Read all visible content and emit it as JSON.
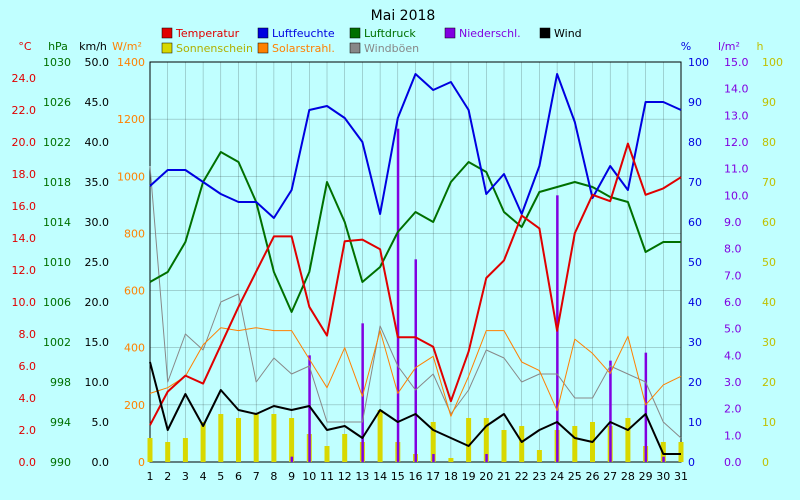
{
  "chart_data": {
    "type": "line",
    "title": "Mai 2018",
    "x": [
      1,
      2,
      3,
      4,
      5,
      6,
      7,
      8,
      9,
      10,
      11,
      12,
      13,
      14,
      15,
      16,
      17,
      18,
      19,
      20,
      21,
      22,
      23,
      24,
      25,
      26,
      27,
      28,
      29,
      30,
      31
    ],
    "series": [
      {
        "name": "Temperatur",
        "unit": "°C",
        "color": "#e00000",
        "values": [
          2.3,
          4.4,
          5.4,
          4.9,
          7.3,
          9.7,
          11.9,
          14.1,
          14.1,
          9.7,
          7.9,
          13.8,
          13.9,
          13.3,
          7.8,
          7.8,
          7.2,
          3.8,
          6.9,
          11.5,
          12.6,
          15.4,
          14.6,
          8.2,
          14.3,
          16.7,
          16.3,
          19.9,
          16.7,
          17.1,
          17.8
        ]
      },
      {
        "name": "Sonnenschein",
        "unit": "h",
        "color": "#d8d800",
        "values": [
          6,
          5,
          6,
          10,
          12,
          11,
          12,
          12,
          11,
          7,
          4,
          7,
          5,
          13,
          5,
          2,
          10,
          1,
          11,
          11,
          8,
          9,
          3,
          8,
          9,
          10,
          9,
          11,
          4,
          5,
          5
        ]
      },
      {
        "name": "Luftfeuchte",
        "unit": "%",
        "color": "#0000e0",
        "values": [
          69,
          73,
          73,
          70,
          67,
          65,
          65,
          61,
          68,
          88,
          89,
          86,
          80,
          62,
          86,
          97,
          93,
          95,
          88,
          67,
          72,
          62,
          74,
          97,
          85,
          66,
          74,
          68,
          90,
          90,
          88
        ]
      },
      {
        "name": "Solarstrahl.",
        "unit": "W/m²",
        "color": "#ff8000",
        "values": [
          240,
          260,
          300,
          410,
          470,
          460,
          470,
          460,
          460,
          360,
          260,
          400,
          230,
          460,
          240,
          330,
          370,
          160,
          300,
          460,
          460,
          350,
          320,
          180,
          430,
          380,
          310,
          440,
          200,
          270,
          300
        ]
      },
      {
        "name": "Luftdruck",
        "unit": "hPa",
        "color": "#007000",
        "values": [
          1008.0,
          1009.0,
          1012.0,
          1018.0,
          1021.0,
          1020.0,
          1016.0,
          1009.0,
          1005.0,
          1009.0,
          1018.0,
          1014.0,
          1008.0,
          1009.5,
          1013.0,
          1015.0,
          1014.0,
          1018.0,
          1020.0,
          1019.0,
          1015.0,
          1013.5,
          1017.0,
          1017.5,
          1018.0,
          1017.5,
          1016.5,
          1016.0,
          1011.0,
          1012.0,
          1012.0
        ]
      },
      {
        "name": "Windböen",
        "unit": "km/h",
        "color": "#888888",
        "values": [
          37,
          10,
          16,
          14,
          20,
          21,
          10,
          13,
          11,
          12,
          5,
          5,
          5,
          17,
          12,
          9,
          11,
          6,
          9,
          14,
          13,
          10,
          11,
          11,
          8,
          8,
          12,
          11,
          10,
          5,
          3
        ]
      },
      {
        "name": "Niederschl.",
        "unit": "l/m²",
        "color": "#8000e0",
        "values": [
          0,
          0,
          0,
          0,
          0,
          0,
          0,
          0,
          0.2,
          4.0,
          0,
          0,
          5.2,
          0,
          12.5,
          7.6,
          0.3,
          0,
          0,
          0.3,
          0,
          0,
          0,
          10.0,
          0,
          0,
          3.8,
          0,
          4.1,
          0.2,
          0
        ]
      },
      {
        "name": "Wind",
        "unit": "km/h",
        "color": "#000000",
        "values": [
          12.5,
          4.0,
          8.5,
          4.5,
          9.0,
          6.5,
          6.0,
          7.0,
          6.5,
          7.0,
          4.0,
          4.5,
          3.0,
          6.5,
          5.0,
          6.0,
          4.0,
          3.0,
          2.0,
          4.5,
          6.0,
          2.5,
          4.0,
          5.0,
          3.0,
          2.5,
          5.0,
          4.0,
          6.0,
          1.0,
          1.0
        ]
      }
    ],
    "axes": {
      "temperature": {
        "label": "°C",
        "ticks": [
          "0.0",
          "2.0",
          "4.0",
          "6.0",
          "8.0",
          "10.0",
          "12.0",
          "14.0",
          "16.0",
          "18.0",
          "20.0",
          "22.0",
          "24.0"
        ],
        "range": [
          0,
          25
        ]
      },
      "pressure": {
        "label": "hPa",
        "ticks": [
          "990",
          "994",
          "998",
          "1002",
          "1006",
          "1010",
          "1014",
          "1018",
          "1022",
          "1026",
          "1030"
        ],
        "range": [
          990,
          1030
        ]
      },
      "wind": {
        "label": "km/h",
        "ticks": [
          "0.0",
          "5.0",
          "10.0",
          "15.0",
          "20.0",
          "25.0",
          "30.0",
          "35.0",
          "40.0",
          "45.0",
          "50.0"
        ],
        "range": [
          0,
          50
        ]
      },
      "solar": {
        "label": "W/m²",
        "ticks": [
          "0",
          "200",
          "400",
          "600",
          "800",
          "1000",
          "1200",
          "1400"
        ],
        "range": [
          0,
          1400
        ]
      },
      "humidity": {
        "label": "%",
        "ticks": [
          "0",
          "10",
          "20",
          "30",
          "40",
          "50",
          "60",
          "70",
          "80",
          "90",
          "100"
        ],
        "range": [
          0,
          100
        ]
      },
      "rain": {
        "label": "l/m²",
        "ticks": [
          "0.0",
          "1.0",
          "2.0",
          "3.0",
          "4.0",
          "5.0",
          "6.0",
          "7.0",
          "8.0",
          "9.0",
          "10.0",
          "11.0",
          "12.0",
          "13.0",
          "14.0",
          "15.0"
        ],
        "range": [
          0,
          15
        ]
      },
      "sunshine": {
        "label": "h",
        "ticks": [
          "0",
          "10",
          "20",
          "30",
          "40",
          "50",
          "60",
          "70",
          "80",
          "90",
          "100"
        ],
        "range": [
          0,
          100
        ]
      }
    },
    "grid": true,
    "legend_position": "top"
  }
}
